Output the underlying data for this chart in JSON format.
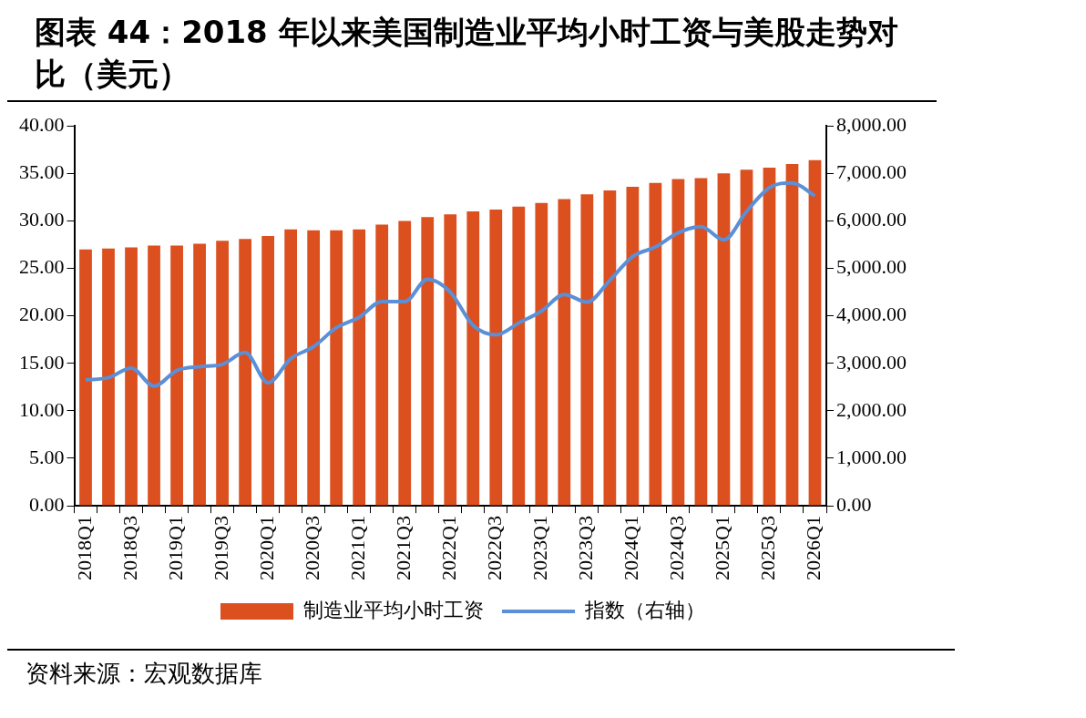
{
  "chart_data": {
    "type": "bar",
    "title": "图表 44：2018 年以来美国制造业平均小时工资与美股走势对比（美元）",
    "annotations": [
      "资料来源：宏观数据库"
    ],
    "categories": [
      "2018Q1",
      null,
      "2018Q3",
      null,
      "2019Q1",
      null,
      "2019Q3",
      null,
      "2020Q1",
      null,
      "2020Q3",
      null,
      "2021Q1",
      null,
      "2021Q3",
      null,
      "2022Q1",
      null,
      "2022Q3",
      null,
      "2023Q1",
      null,
      "2023Q3",
      null,
      "2024Q1",
      null,
      "2024Q3",
      null,
      "2025Q1",
      null,
      "2025Q3",
      null,
      "2026Q1"
    ],
    "series": [
      {
        "name": "制造业平均小时工资",
        "color": "#dc4f1f",
        "values": [
          27.0,
          27.1,
          27.2,
          27.4,
          27.4,
          27.6,
          27.9,
          28.1,
          28.4,
          29.1,
          29.0,
          29.0,
          29.1,
          29.6,
          30.0,
          30.4,
          30.7,
          31.0,
          31.2,
          31.5,
          31.9,
          32.3,
          32.8,
          33.2,
          33.6,
          34.0,
          34.4,
          34.5,
          35.0,
          35.4,
          35.6,
          36.0,
          36.4
        ]
      },
      {
        "name": "指数（右轴）",
        "type": "line",
        "axis": "y2",
        "color": "#5b8fd6",
        "values": [
          2650,
          2700,
          2900,
          2520,
          2850,
          2930,
          2980,
          3230,
          2590,
          3100,
          3350,
          3750,
          3970,
          4300,
          4300,
          4770,
          4500,
          3800,
          3600,
          3850,
          4100,
          4450,
          4290,
          4750,
          5250,
          5450,
          5750,
          5880,
          5600,
          6200,
          6700,
          6800,
          6530
        ]
      }
    ],
    "ylim": [
      0,
      40
    ],
    "yticks": [
      {
        "value": 0,
        "label": "0.00"
      },
      {
        "value": 5,
        "label": "5.00"
      },
      {
        "value": 10,
        "label": "10.00"
      },
      {
        "value": 15,
        "label": "15.00"
      },
      {
        "value": 20,
        "label": "20.00"
      },
      {
        "value": 25,
        "label": "25.00"
      },
      {
        "value": 30,
        "label": "30.00"
      },
      {
        "value": 35,
        "label": "35.00"
      },
      {
        "value": 40,
        "label": "40.00"
      }
    ],
    "y2lim": [
      0,
      8000
    ],
    "y2ticks": [
      {
        "value": 0,
        "label": "0.00"
      },
      {
        "value": 1000,
        "label": "1,000.00"
      },
      {
        "value": 2000,
        "label": "2,000.00"
      },
      {
        "value": 3000,
        "label": "3,000.00"
      },
      {
        "value": 4000,
        "label": "4,000.00"
      },
      {
        "value": 5000,
        "label": "5,000.00"
      },
      {
        "value": 6000,
        "label": "6,000.00"
      },
      {
        "value": 7000,
        "label": "7,000.00"
      },
      {
        "value": 8000,
        "label": "8,000.00"
      }
    ],
    "grid": false,
    "legend": "bottom",
    "marker": "none"
  }
}
